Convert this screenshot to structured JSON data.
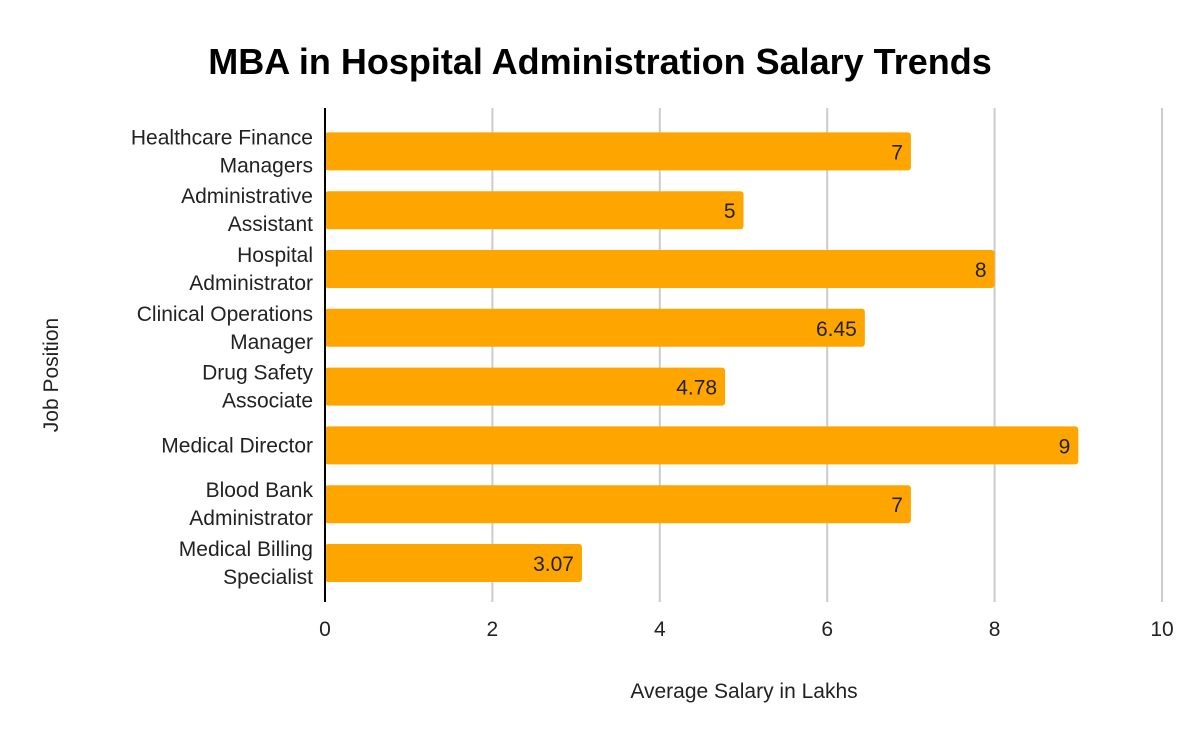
{
  "chart_data": {
    "type": "bar",
    "orientation": "horizontal",
    "title": "MBA in Hospital Administration Salary Trends",
    "xlabel": "Average Salary in Lakhs",
    "ylabel": "Job Position",
    "xlim": [
      0,
      10
    ],
    "xticks": [
      0,
      2,
      4,
      6,
      8,
      10
    ],
    "grid": true,
    "legend": "none",
    "bar_color": "#FFA500",
    "categories": [
      [
        "Healthcare Finance",
        "Managers"
      ],
      [
        "Administrative",
        "Assistant"
      ],
      [
        "Hospital",
        "Administrator"
      ],
      [
        "Clinical Operations",
        "Manager"
      ],
      [
        "Drug Safety",
        "Associate"
      ],
      [
        "Medical Director"
      ],
      [
        "Blood Bank",
        "Administrator"
      ],
      [
        "Medical Billing",
        "Specialist"
      ]
    ],
    "values": [
      7,
      5,
      8,
      6.45,
      4.78,
      9,
      7,
      3.07
    ],
    "data_labels": [
      "7",
      "5",
      "8",
      "6.45",
      "4.78",
      "9",
      "7",
      "3.07"
    ]
  }
}
